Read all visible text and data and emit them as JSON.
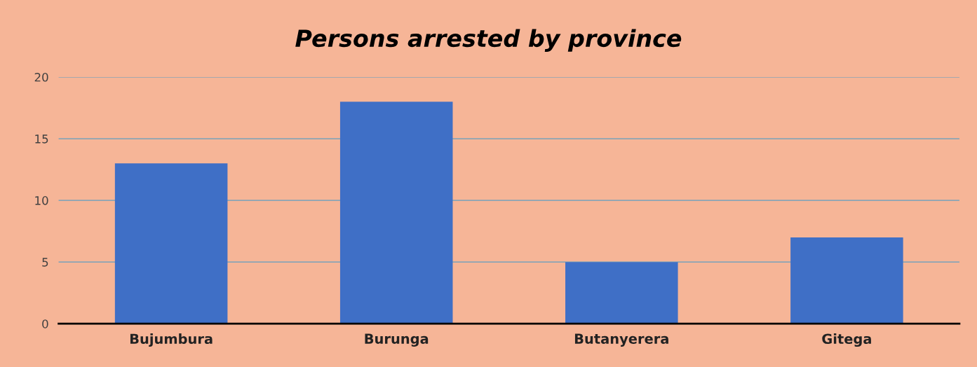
{
  "chart_data": {
    "type": "bar",
    "title": "Persons arrested by province",
    "categories": [
      "Bujumbura",
      "Burunga",
      "Butanyerera",
      "Gitega"
    ],
    "values": [
      13,
      18,
      5,
      7
    ],
    "color": "#3f6fc6",
    "ylim": [
      0,
      20
    ],
    "yticks": [
      0,
      5,
      10,
      15,
      20
    ],
    "grid": "y"
  }
}
